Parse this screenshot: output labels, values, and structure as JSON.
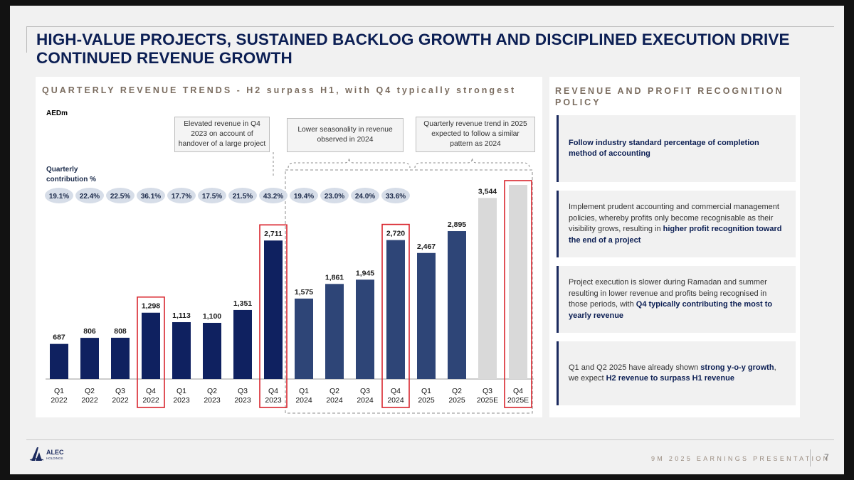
{
  "title": "HIGH-VALUE PROJECTS, SUSTAINED BACKLOG GROWTH AND DISCIPLINED EXECUTION DRIVE CONTINUED REVENUE GROWTH",
  "left_panel": {
    "title": "QUARTERLY REVENUE TRENDS - H2 surpass H1, with Q4 typically strongest",
    "unit": "AEDm",
    "contribution_label": "Quarterly contribution %",
    "callouts": [
      "Elevated revenue in Q4 2023 on account of handover of a large project",
      "Lower seasonality in revenue observed in 2024",
      "Quarterly revenue trend in 2025 expected to follow a similar pattern as 2024"
    ]
  },
  "right_panel": {
    "title": "REVENUE AND PROFIT RECOGNITION POLICY",
    "items": [
      {
        "text": "",
        "bold": "Follow industry standard percentage of completion method of accounting",
        "after": ""
      },
      {
        "text": "Implement prudent accounting and commercial management policies, whereby profits only become recognisable as their visibility grows, resulting in ",
        "bold": "higher profit recognition toward the end of a project",
        "after": ""
      },
      {
        "text": "Project execution is slower during Ramadan and summer resulting in lower revenue and profits being recognised in those periods, with ",
        "bold": "Q4 typically contributing the most to yearly revenue",
        "after": ""
      },
      {
        "text": "Q1 and Q2 2025 have already shown ",
        "bold": "strong y-o-y growth",
        "after": ", we expect ",
        "bold2": "H2 revenue to surpass H1 revenue"
      }
    ]
  },
  "footer": {
    "logo_text": "ALEC",
    "logo_sub": "HOLDINGS",
    "presentation": "9M 2025 EARNINGS PRESENTATION",
    "page": "7"
  },
  "colors": {
    "navy": "#0f2160",
    "blue": "#2e4577",
    "forecast": "#d9d9d9",
    "highlight": "#d9262e",
    "bubble": "#d6dde8"
  },
  "chart_data": {
    "type": "bar",
    "categories": [
      [
        "Q1",
        "2022"
      ],
      [
        "Q2",
        "2022"
      ],
      [
        "Q3",
        "2022"
      ],
      [
        "Q4",
        "2022"
      ],
      [
        "Q1",
        "2023"
      ],
      [
        "Q2",
        "2023"
      ],
      [
        "Q3",
        "2023"
      ],
      [
        "Q4",
        "2023"
      ],
      [
        "Q1",
        "2024"
      ],
      [
        "Q2",
        "2024"
      ],
      [
        "Q3",
        "2024"
      ],
      [
        "Q4",
        "2024"
      ],
      [
        "Q1",
        "2025"
      ],
      [
        "Q2",
        "2025"
      ],
      [
        "Q3",
        "2025E"
      ],
      [
        "Q4",
        "2025E"
      ]
    ],
    "values": [
      687,
      806,
      808,
      1298,
      1113,
      1100,
      1351,
      2711,
      1575,
      1861,
      1945,
      2720,
      2467,
      2895,
      3544,
      3800
    ],
    "value_labels": [
      "687",
      "806",
      "808",
      "1,298",
      "1,113",
      "1,100",
      "1,351",
      "2,711",
      "1,575",
      "1,861",
      "1,945",
      "2,720",
      "2,467",
      "2,895",
      "3,544",
      ""
    ],
    "bar_styles": [
      "navy",
      "navy",
      "navy",
      "navy",
      "navy",
      "navy",
      "navy",
      "navy",
      "blue",
      "blue",
      "blue",
      "blue",
      "blue",
      "blue",
      "forecast",
      "forecast"
    ],
    "highlighted": [
      3,
      7,
      11,
      15
    ],
    "contribution_pct": [
      "19.1%",
      "22.4%",
      "22.5%",
      "36.1%",
      "17.7%",
      "17.5%",
      "21.5%",
      "43.2%",
      "19.4%",
      "23.0%",
      "24.0%",
      "33.6%",
      "",
      "",
      "",
      ""
    ],
    "ylim": [
      0,
      3800
    ],
    "grid": false,
    "legend": "none"
  }
}
